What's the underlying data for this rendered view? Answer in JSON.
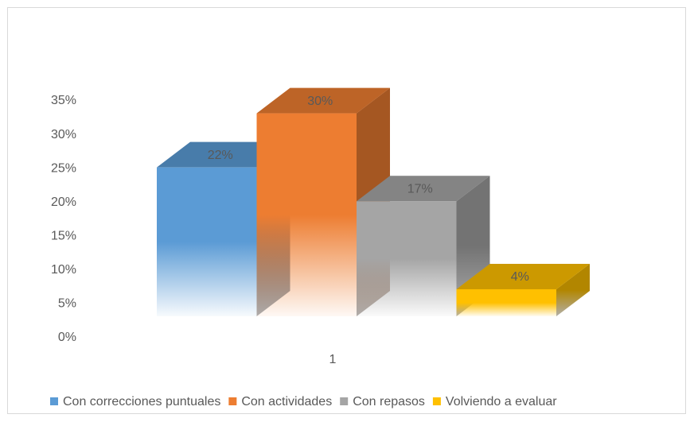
{
  "chart_data": {
    "type": "bar3d",
    "categories": [
      "1"
    ],
    "series": [
      {
        "name": "Con correcciones puntuales",
        "color": "#5b9bd5",
        "values": [
          22
        ],
        "value_labels": [
          "22%"
        ]
      },
      {
        "name": "Con actividades",
        "color": "#ed7d31",
        "values": [
          30
        ],
        "value_labels": [
          "30%"
        ]
      },
      {
        "name": "Con repasos",
        "color": "#a5a5a5",
        "values": [
          17
        ],
        "value_labels": [
          "17%"
        ]
      },
      {
        "name": "Volviendo a evaluar",
        "color": "#ffc000",
        "values": [
          4
        ],
        "value_labels": [
          "4%"
        ]
      }
    ],
    "ylim": [
      0,
      35
    ],
    "yticks": [
      {
        "value": 0,
        "label": "0%"
      },
      {
        "value": 5,
        "label": "5%"
      },
      {
        "value": 10,
        "label": "10%"
      },
      {
        "value": 15,
        "label": "15%"
      },
      {
        "value": 20,
        "label": "20%"
      },
      {
        "value": 25,
        "label": "25%"
      },
      {
        "value": 30,
        "label": "30%"
      },
      {
        "value": 35,
        "label": "35%"
      }
    ],
    "legend": "bottom"
  }
}
